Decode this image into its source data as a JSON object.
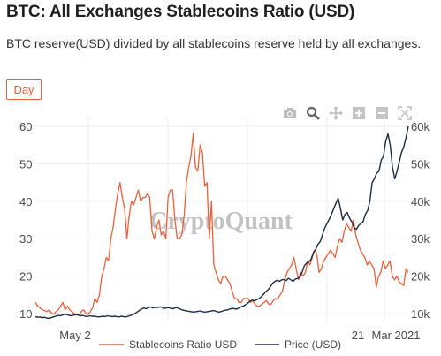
{
  "title": "BTC: All Exchanges Stablecoins Ratio (USD)",
  "subtitle": "BTC reserve(USD) divided by all stablecoins reserve held by all exchanges.",
  "timeframe_button": "Day",
  "watermark": "CryptoQuant",
  "toolbar": {
    "icons": [
      "camera-icon",
      "zoom-icon",
      "pan-icon",
      "zoom-in-icon",
      "zoom-out-icon",
      "autoscale-icon"
    ]
  },
  "colors": {
    "ratio": "#e8603c",
    "price": "#1e2a44",
    "accent": "#e8603c",
    "grid": "#ececec"
  },
  "chart_data": {
    "type": "line",
    "x_tick_labels": [
      "May 2",
      "21",
      "Mar 2021"
    ],
    "left_axis": {
      "ticks": [
        "10",
        "20",
        "30",
        "40",
        "50",
        "60"
      ],
      "ylim": [
        10,
        60
      ]
    },
    "right_axis": {
      "ticks": [
        "10k",
        "20k",
        "30k",
        "40k",
        "50k",
        "60k"
      ],
      "ylim": [
        10000,
        60000
      ]
    },
    "grid": true,
    "legend_placement": "bottom",
    "series": [
      {
        "name": "Stablecoins Ratio USD",
        "axis": "left",
        "values": [
          13,
          12,
          11.5,
          11,
          10.8,
          10.5,
          11,
          10.2,
          9.8,
          10.5,
          11,
          12,
          13,
          11,
          12,
          11,
          10.5,
          10,
          9.8,
          9.5,
          10.5,
          11,
          10.2,
          9.8,
          10.5,
          11.5,
          14,
          13,
          15,
          20,
          22,
          25,
          24,
          30,
          33,
          38,
          42,
          45,
          41,
          38,
          30,
          36,
          40,
          39,
          41,
          43,
          40,
          41,
          41,
          42,
          41,
          32,
          30,
          33,
          35,
          31,
          32,
          30,
          41,
          43,
          43,
          35,
          30,
          30,
          31,
          36,
          45,
          49,
          52,
          58,
          49,
          48,
          55,
          53,
          44,
          45,
          30,
          40,
          23,
          21,
          19,
          18,
          20,
          20,
          19,
          18,
          16,
          14,
          14,
          13,
          13,
          14,
          14,
          14,
          13,
          13.5,
          12.5,
          12,
          12,
          12.5,
          13,
          13.5,
          12.5,
          12.5,
          13.5,
          14,
          14,
          15,
          16,
          19,
          21,
          22,
          23,
          25,
          22,
          19,
          21,
          20,
          21,
          24,
          23,
          25,
          27,
          26,
          21,
          22,
          24,
          25,
          26,
          27,
          26,
          25,
          28,
          30,
          29,
          32,
          34,
          33,
          32,
          35,
          31,
          29,
          27,
          26,
          25,
          23,
          24,
          23,
          22,
          17,
          20,
          21,
          24,
          22,
          23,
          24,
          20,
          19,
          20,
          18.5,
          18,
          17.5,
          22,
          21
        ]
      },
      {
        "name": "Price (USD)",
        "axis": "right",
        "values": [
          9200,
          9000,
          9100,
          8900,
          9000,
          8800,
          8700,
          8900,
          9100,
          9300,
          9500,
          9400,
          9600,
          9800,
          9700,
          9500,
          9400,
          9600,
          9700,
          9600,
          9400,
          9500,
          9300,
          9200,
          9400,
          9300,
          9300,
          9200,
          9100,
          9200,
          9300,
          9200,
          9400,
          9300,
          9200,
          9300,
          9200,
          9100,
          9300,
          9200,
          9100,
          9300,
          9500,
          9700,
          10000,
          10400,
          10800,
          11200,
          11500,
          11300,
          11600,
          11800,
          11500,
          11700,
          11600,
          11800,
          11700,
          11400,
          11500,
          11600,
          11400,
          11300,
          11600,
          11500,
          11200,
          11000,
          10800,
          10700,
          10600,
          10500,
          10400,
          10500,
          10600,
          10700,
          10500,
          10400,
          10500,
          10600,
          10700,
          10800,
          10600,
          10400,
          10500,
          10700,
          10900,
          11000,
          11200,
          11400,
          11300,
          11200,
          11500,
          11800,
          12000,
          12400,
          12800,
          13300,
          13600,
          13400,
          13700,
          14000,
          14500,
          15200,
          15900,
          16400,
          17200,
          18100,
          18600,
          18900,
          18600,
          19000,
          19100,
          18800,
          19400,
          19000,
          18600,
          19200,
          19400,
          19700,
          21000,
          22800,
          23500,
          23800,
          24500,
          26300,
          27100,
          28500,
          29200,
          31000,
          32800,
          34000,
          35200,
          36500,
          38000,
          39500,
          40800,
          38000,
          35000,
          36500,
          37000,
          35500,
          34500,
          33000,
          32500,
          33500,
          34000,
          34500,
          36500,
          37500,
          40000,
          45000,
          46000,
          47500,
          48000,
          51000,
          52000,
          56000,
          58000,
          55000,
          49000,
          46000,
          48000,
          50500,
          53000,
          54500,
          57000,
          60000
        ]
      }
    ]
  }
}
